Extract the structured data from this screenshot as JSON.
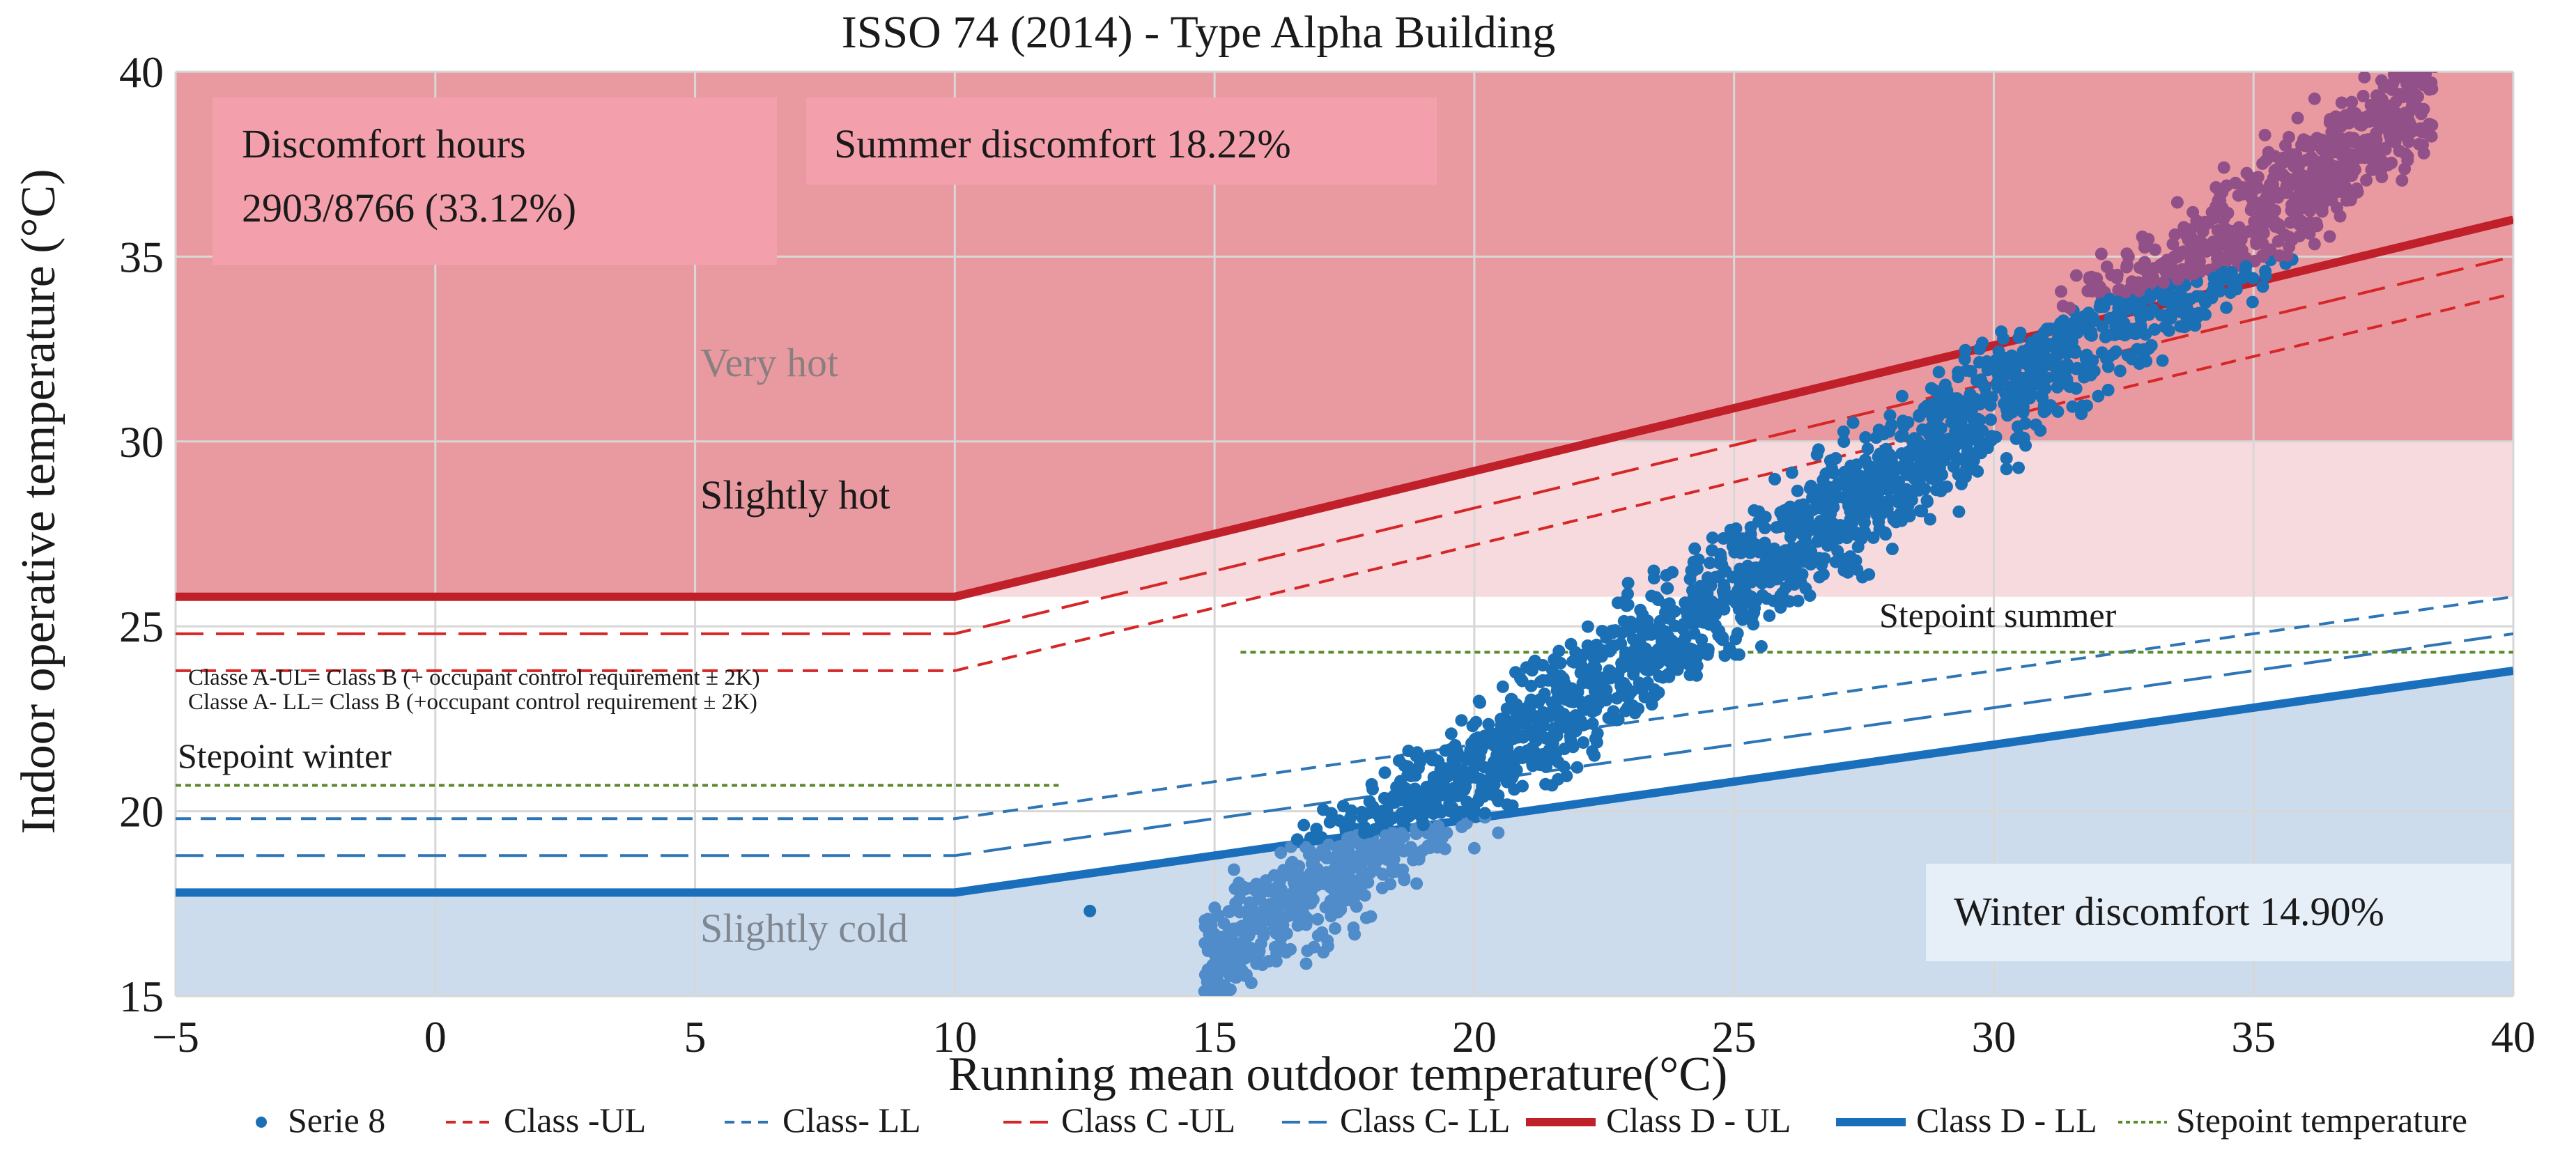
{
  "chart_data": {
    "type": "scatter",
    "title": "ISSO 74 (2014) - Type Alpha Building",
    "xlabel": "Running mean outdoor temperature(°C)",
    "ylabel": "Indoor operative temperature (°C)",
    "xlim": [
      -5,
      40
    ],
    "ylim": [
      15,
      40
    ],
    "xticks": [
      "−5",
      "0",
      "5",
      "10",
      "15",
      "20",
      "25",
      "30",
      "35",
      "40"
    ],
    "xtick_values": [
      -5,
      0,
      5,
      10,
      15,
      20,
      25,
      30,
      35,
      40
    ],
    "yticks": [
      "15",
      "20",
      "25",
      "30",
      "35",
      "40"
    ],
    "ytick_values": [
      15,
      20,
      25,
      30,
      35,
      40
    ],
    "grid": true,
    "zones": [
      {
        "name": "Very hot",
        "from": 30,
        "to": 40,
        "color": "#e99aa0"
      },
      {
        "name": "Slightly hot",
        "from": 25.8,
        "to": 30,
        "color": "#f6dadd"
      },
      {
        "name": "Slightly cold",
        "from": 15,
        "to": 17.8,
        "color": "#cddcec"
      }
    ],
    "zone_labels": {
      "very_hot": "Very hot",
      "slightly_hot": "Slightly hot",
      "slightly_cold": "Slightly cold"
    },
    "boxes": {
      "discomfort_line1": "Discomfort hours",
      "discomfort_line2": "2903/8766 (33.12%)",
      "summer": "Summer discomfort 18.22%",
      "winter": "Winter discomfort 14.90%"
    },
    "notes": {
      "class_a_ul": "Classe A-UL= Class B (+ occupant control requirement ± 2K)",
      "class_a_ll": "Classe A- LL= Class B (+occupant control requirement ± 2K)",
      "setpoint_summer": "Stepoint summer",
      "setpoint_winter": "Stepoint winter"
    },
    "series": [
      {
        "name": "Class D - UL",
        "style": "solid",
        "color": "#c0202a",
        "x": [
          -5,
          10,
          40
        ],
        "y": [
          25.8,
          25.8,
          36
        ]
      },
      {
        "name": "Class C -UL",
        "style": "long-dash",
        "color": "#d62728",
        "x": [
          -5,
          10,
          40
        ],
        "y": [
          24.8,
          24.8,
          35
        ]
      },
      {
        "name": "Class -UL",
        "style": "dash",
        "color": "#d62728",
        "x": [
          -5,
          10,
          40
        ],
        "y": [
          23.8,
          23.8,
          34
        ]
      },
      {
        "name": "Class- LL",
        "style": "dash",
        "color": "#2e75b6",
        "x": [
          -5,
          10,
          40
        ],
        "y": [
          19.8,
          19.8,
          25.8
        ]
      },
      {
        "name": "Class C- LL",
        "style": "long-dash",
        "color": "#2e75b6",
        "x": [
          -5,
          10,
          40
        ],
        "y": [
          18.8,
          18.8,
          24.8
        ]
      },
      {
        "name": "Class D - LL",
        "style": "solid",
        "color": "#1a6fbd",
        "x": [
          -5,
          10,
          40
        ],
        "y": [
          17.8,
          17.8,
          23.8
        ]
      },
      {
        "name": "Stepoint temperature",
        "style": "dotted",
        "color": "#5a8a2a",
        "segments": [
          {
            "x": [
              -5,
              12
            ],
            "y": [
              20.7,
              20.7
            ]
          },
          {
            "x": [
              15.5,
              40
            ],
            "y": [
              24.3,
              24.3
            ]
          }
        ]
      },
      {
        "name": "Serie 8",
        "style": "scatter",
        "color": "#1a6fb5",
        "x_range": [
          14.8,
          38.5
        ],
        "trend": {
          "at_x15": 16.0,
          "at_x38": 39.0
        }
      }
    ],
    "legend": {
      "placement": "bottom",
      "items": [
        {
          "label": "Serie 8",
          "kind": "dot",
          "color": "#1a6fb5"
        },
        {
          "label": "Class -UL",
          "kind": "dash",
          "color": "#d62728"
        },
        {
          "label": "Class- LL",
          "kind": "dash",
          "color": "#2e75b6"
        },
        {
          "label": "Class C -UL",
          "kind": "longdash",
          "color": "#d62728"
        },
        {
          "label": "Class C- LL",
          "kind": "longdash",
          "color": "#2e75b6"
        },
        {
          "label": "Class D - UL",
          "kind": "thick",
          "color": "#c0202a"
        },
        {
          "label": "Class D - LL",
          "kind": "thick",
          "color": "#1a6fbd"
        },
        {
          "label": "Stepoint temperature",
          "kind": "dotted",
          "color": "#5a8a2a"
        }
      ]
    }
  }
}
